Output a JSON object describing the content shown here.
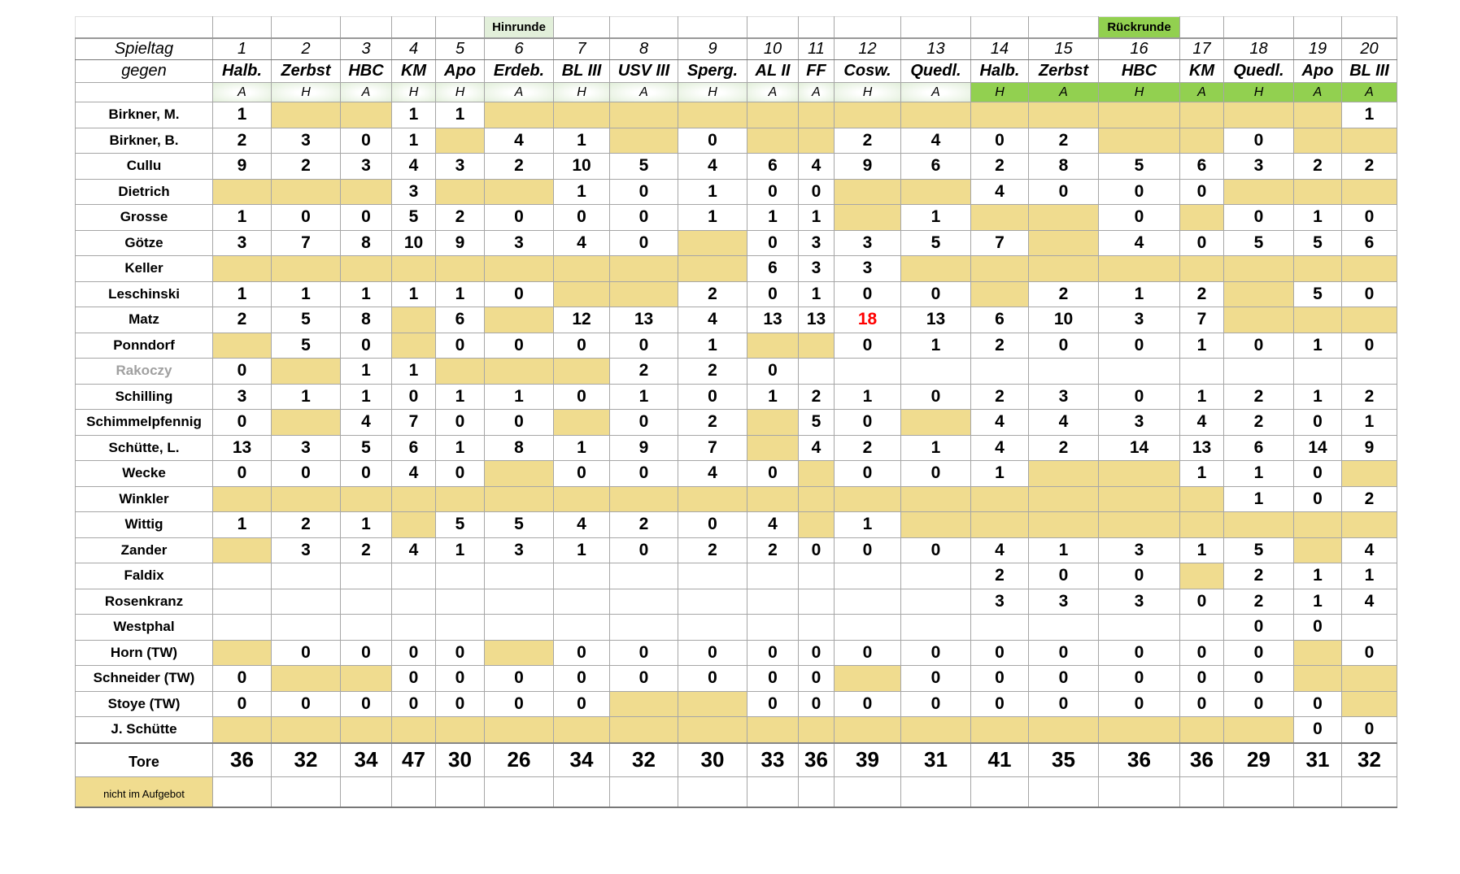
{
  "rounds": {
    "hinrunde": "Hinrunde",
    "hinrunde_col": 6,
    "rueckrunde": "Rückrunde",
    "rueckrunde_col": 16
  },
  "labels": {
    "spieltag": "Spieltag",
    "gegen": "gegen",
    "tore": "Tore",
    "legend": "nicht im Aufgebot"
  },
  "colors": {
    "absent": "#f0dc8f",
    "rueckrunde": "#92d050",
    "hinrunde": "#e2efda",
    "highlight": "#ff0000"
  },
  "matchdays": [
    "1",
    "2",
    "3",
    "4",
    "5",
    "6",
    "7",
    "8",
    "9",
    "10",
    "11",
    "12",
    "13",
    "14",
    "15",
    "16",
    "17",
    "18",
    "19",
    "20"
  ],
  "opponents": [
    "Halb.",
    "Zerbst",
    "HBC",
    "KM",
    "Apo",
    "Erdeb.",
    "BL III",
    "USV III",
    "Sperg.",
    "AL II",
    "FF",
    "Cosw.",
    "Quedl.",
    "Halb.",
    "Zerbst",
    "HBC",
    "KM",
    "Quedl.",
    "Apo",
    "BL III"
  ],
  "home_away": [
    "A",
    "H",
    "A",
    "H",
    "H",
    "A",
    "H",
    "A",
    "H",
    "A",
    "A",
    "H",
    "A",
    "H",
    "A",
    "H",
    "A",
    "H",
    "A",
    "A"
  ],
  "note": "null = nicht im Aufgebot (yellow), \"\" = empty",
  "players": [
    {
      "name": "Birkner, M.",
      "goals": [
        "1",
        null,
        null,
        "1",
        "1",
        null,
        null,
        null,
        null,
        null,
        null,
        null,
        null,
        null,
        null,
        null,
        null,
        null,
        null,
        "1"
      ]
    },
    {
      "name": "Birkner, B.",
      "goals": [
        "2",
        "3",
        "0",
        "1",
        null,
        "4",
        "1",
        null,
        "0",
        null,
        null,
        "2",
        "4",
        "0",
        "2",
        null,
        null,
        "0",
        null,
        null
      ]
    },
    {
      "name": "Cullu",
      "goals": [
        "9",
        "2",
        "3",
        "4",
        "3",
        "2",
        "10",
        "5",
        "4",
        "6",
        "4",
        "9",
        "6",
        "2",
        "8",
        "5",
        "6",
        "3",
        "2",
        "2"
      ]
    },
    {
      "name": "Dietrich",
      "goals": [
        null,
        null,
        null,
        "3",
        null,
        null,
        "1",
        "0",
        "1",
        "0",
        "0",
        null,
        null,
        "4",
        "0",
        "0",
        "0",
        null,
        null,
        null
      ]
    },
    {
      "name": "Grosse",
      "goals": [
        "1",
        "0",
        "0",
        "5",
        "2",
        "0",
        "0",
        "0",
        "1",
        "1",
        "1",
        null,
        "1",
        null,
        null,
        "0",
        null,
        "0",
        "1",
        "0"
      ]
    },
    {
      "name": "Götze",
      "goals": [
        "3",
        "7",
        "8",
        "10",
        "9",
        "3",
        "4",
        "0",
        null,
        "0",
        "3",
        "3",
        "5",
        "7",
        null,
        "4",
        "0",
        "5",
        "5",
        "6"
      ]
    },
    {
      "name": "Keller",
      "goals": [
        null,
        null,
        null,
        null,
        null,
        null,
        null,
        null,
        null,
        "6",
        "3",
        "3",
        null,
        null,
        null,
        null,
        null,
        null,
        null,
        null
      ]
    },
    {
      "name": "Leschinski",
      "goals": [
        "1",
        "1",
        "1",
        "1",
        "1",
        "0",
        null,
        null,
        "2",
        "0",
        "1",
        "0",
        "0",
        null,
        "2",
        "1",
        "2",
        null,
        "5",
        "0"
      ]
    },
    {
      "name": "Matz",
      "goals": [
        "2",
        "5",
        "8",
        null,
        "6",
        null,
        "12",
        "13",
        "4",
        "13",
        "13",
        "18",
        "13",
        "6",
        "10",
        "3",
        "7",
        null,
        null,
        null
      ],
      "highlight": [
        11
      ]
    },
    {
      "name": "Ponndorf",
      "goals": [
        null,
        "5",
        "0",
        null,
        "0",
        "0",
        "0",
        "0",
        "1",
        null,
        null,
        "0",
        "1",
        "2",
        "0",
        "0",
        "1",
        "0",
        "1",
        "0"
      ]
    },
    {
      "name": "Rakoczy",
      "inactive": true,
      "goals": [
        "0",
        null,
        "1",
        "1",
        null,
        null,
        null,
        "2",
        "2",
        "0",
        "",
        "",
        "",
        "",
        "",
        "",
        "",
        "",
        "",
        ""
      ]
    },
    {
      "name": "Schilling",
      "goals": [
        "3",
        "1",
        "1",
        "0",
        "1",
        "1",
        "0",
        "1",
        "0",
        "1",
        "2",
        "1",
        "0",
        "2",
        "3",
        "0",
        "1",
        "2",
        "1",
        "2"
      ]
    },
    {
      "name": "Schimmelpfennig",
      "goals": [
        "0",
        null,
        "4",
        "7",
        "0",
        "0",
        null,
        "0",
        "2",
        null,
        "5",
        "0",
        null,
        "4",
        "4",
        "3",
        "4",
        "2",
        "0",
        "1"
      ]
    },
    {
      "name": "Schütte, L.",
      "goals": [
        "13",
        "3",
        "5",
        "6",
        "1",
        "8",
        "1",
        "9",
        "7",
        null,
        "4",
        "2",
        "1",
        "4",
        "2",
        "14",
        "13",
        "6",
        "14",
        "9"
      ]
    },
    {
      "name": "Wecke",
      "goals": [
        "0",
        "0",
        "0",
        "4",
        "0",
        null,
        "0",
        "0",
        "4",
        "0",
        null,
        "0",
        "0",
        "1",
        null,
        null,
        "1",
        "1",
        "0",
        null
      ]
    },
    {
      "name": "Winkler",
      "goals": [
        null,
        null,
        null,
        null,
        null,
        null,
        null,
        null,
        null,
        null,
        null,
        null,
        null,
        null,
        null,
        null,
        null,
        "1",
        "0",
        "2"
      ]
    },
    {
      "name": "Wittig",
      "goals": [
        "1",
        "2",
        "1",
        null,
        "5",
        "5",
        "4",
        "2",
        "0",
        "4",
        null,
        "1",
        null,
        null,
        null,
        null,
        null,
        null,
        null,
        null
      ]
    },
    {
      "name": "Zander",
      "goals": [
        null,
        "3",
        "2",
        "4",
        "1",
        "3",
        "1",
        "0",
        "2",
        "2",
        "0",
        "0",
        "0",
        "4",
        "1",
        "3",
        "1",
        "5",
        null,
        "4"
      ]
    },
    {
      "name": "Faldix",
      "goals": [
        "",
        "",
        "",
        "",
        "",
        "",
        "",
        "",
        "",
        "",
        "",
        "",
        "",
        "2",
        "0",
        "0",
        null,
        "2",
        "1",
        "1"
      ]
    },
    {
      "name": "Rosenkranz",
      "goals": [
        "",
        "",
        "",
        "",
        "",
        "",
        "",
        "",
        "",
        "",
        "",
        "",
        "",
        "3",
        "3",
        "3",
        "0",
        "2",
        "1",
        "4"
      ]
    },
    {
      "name": "Westphal",
      "goals": [
        "",
        "",
        "",
        "",
        "",
        "",
        "",
        "",
        "",
        "",
        "",
        "",
        "",
        "",
        "",
        "",
        "",
        "0",
        "0",
        ""
      ]
    },
    {
      "name": "Horn (TW)",
      "goals": [
        null,
        "0",
        "0",
        "0",
        "0",
        null,
        "0",
        "0",
        "0",
        "0",
        "0",
        "0",
        "0",
        "0",
        "0",
        "0",
        "0",
        "0",
        null,
        "0"
      ]
    },
    {
      "name": "Schneider (TW)",
      "goals": [
        "0",
        null,
        null,
        "0",
        "0",
        "0",
        "0",
        "0",
        "0",
        "0",
        "0",
        null,
        "0",
        "0",
        "0",
        "0",
        "0",
        "0",
        null,
        null
      ]
    },
    {
      "name": "Stoye (TW)",
      "goals": [
        "0",
        "0",
        "0",
        "0",
        "0",
        "0",
        "0",
        null,
        null,
        "0",
        "0",
        "0",
        "0",
        "0",
        "0",
        "0",
        "0",
        "0",
        "0",
        null
      ]
    },
    {
      "name": "J. Schütte",
      "goals": [
        null,
        null,
        null,
        null,
        null,
        null,
        null,
        null,
        null,
        null,
        null,
        null,
        null,
        null,
        null,
        null,
        null,
        null,
        "0",
        "0"
      ]
    }
  ],
  "totals": [
    "36",
    "32",
    "34",
    "47",
    "30",
    "26",
    "34",
    "32",
    "30",
    "33",
    "36",
    "39",
    "31",
    "41",
    "35",
    "36",
    "36",
    "29",
    "31",
    "32"
  ]
}
